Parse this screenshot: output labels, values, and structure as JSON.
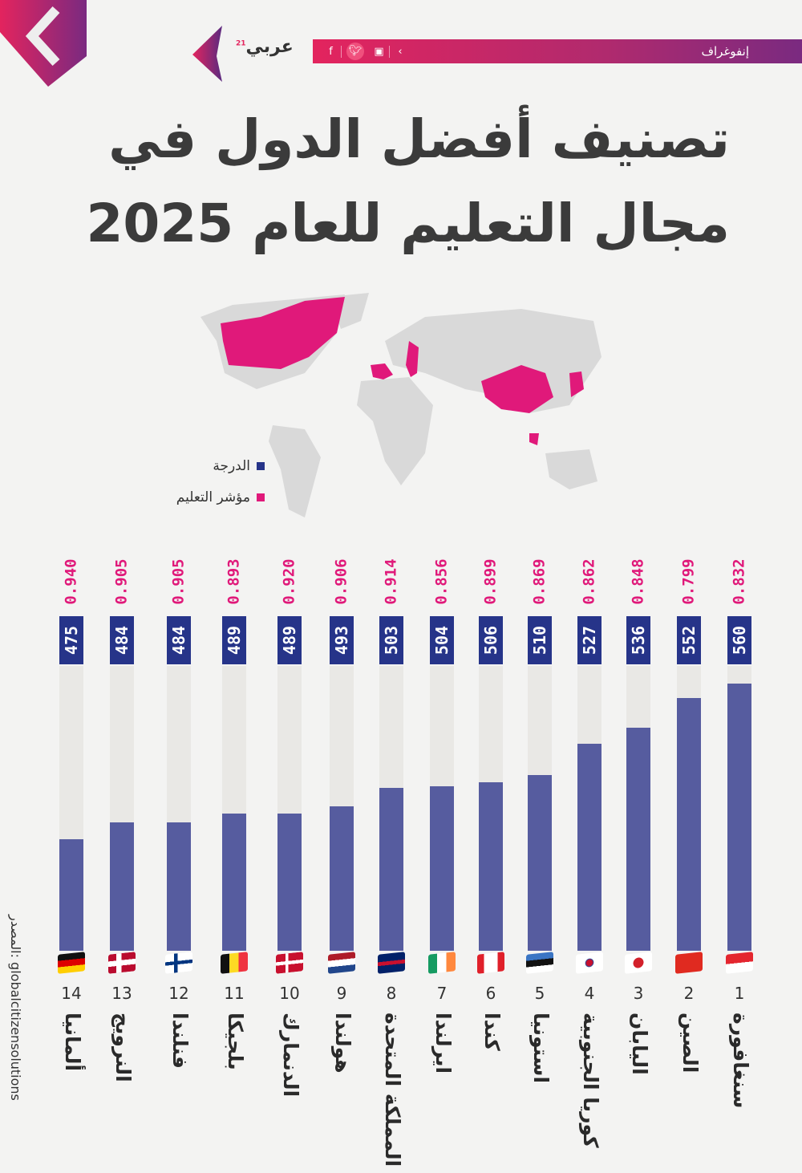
{
  "header": {
    "brand": "عربي",
    "brand_sup": "21",
    "section_label": "إنفوغراف",
    "social_icons": [
      "facebook-icon",
      "twitter-icon",
      "youtube-icon",
      "arabi21-icon"
    ]
  },
  "title": {
    "line1": "تصنيف أفضل الدول في",
    "line2": "مجال التعليم للعام 2025"
  },
  "legend": [
    {
      "label": "الدرجة",
      "color": "#263489"
    },
    {
      "label": "مؤشر التعليم",
      "color": "#e0197a"
    }
  ],
  "source": "المصدر: globalcitizensolutions",
  "chart_data": {
    "type": "bar",
    "title": "تصنيف أفضل الدول في مجال التعليم للعام 2025",
    "series": [
      {
        "name": "الدرجة",
        "color": "#263489"
      },
      {
        "name": "مؤشر التعليم",
        "color": "#e0197a"
      }
    ],
    "countries": [
      {
        "rank": "1",
        "name": "سنغافورة",
        "score": 560,
        "index": "0.832",
        "flag": "flag-singapore"
      },
      {
        "rank": "2",
        "name": "الصين",
        "score": 552,
        "index": "0.799",
        "flag": "flag-china"
      },
      {
        "rank": "3",
        "name": "اليابان",
        "score": 536,
        "index": "0.848",
        "flag": "flag-japan"
      },
      {
        "rank": "4",
        "name": "كوريا الجنوبية",
        "score": 527,
        "index": "0.862",
        "flag": "flag-southkorea"
      },
      {
        "rank": "5",
        "name": "استونيا",
        "score": 510,
        "index": "0.869",
        "flag": "flag-estonia"
      },
      {
        "rank": "6",
        "name": "كندا",
        "score": 506,
        "index": "0.899",
        "flag": "flag-canada"
      },
      {
        "rank": "7",
        "name": "ايرلندا",
        "score": 504,
        "index": "0.856",
        "flag": "flag-ireland"
      },
      {
        "rank": "8",
        "name": "المملكة المتحدة",
        "score": 503,
        "index": "0.914",
        "flag": "flag-uk"
      },
      {
        "rank": "9",
        "name": "هولندا",
        "score": 493,
        "index": "0.906",
        "flag": "flag-netherlands"
      },
      {
        "rank": "10",
        "name": "الدنمارك",
        "score": 489,
        "index": "0.920",
        "flag": "flag-denmark"
      },
      {
        "rank": "11",
        "name": "بلجيكا",
        "score": 489,
        "index": "0.893",
        "flag": "flag-belgium"
      },
      {
        "rank": "12",
        "name": "فنلندا",
        "score": 484,
        "index": "0.905",
        "flag": "flag-finland"
      },
      {
        "rank": "13",
        "name": "النرويج",
        "score": 484,
        "index": "0.905",
        "flag": "flag-norway"
      },
      {
        "rank": "14",
        "name": "ألمانيا",
        "score": 475,
        "index": "0.940",
        "flag": "flag-germany"
      }
    ],
    "score_axis_min": 414,
    "score_axis_max": 570
  }
}
